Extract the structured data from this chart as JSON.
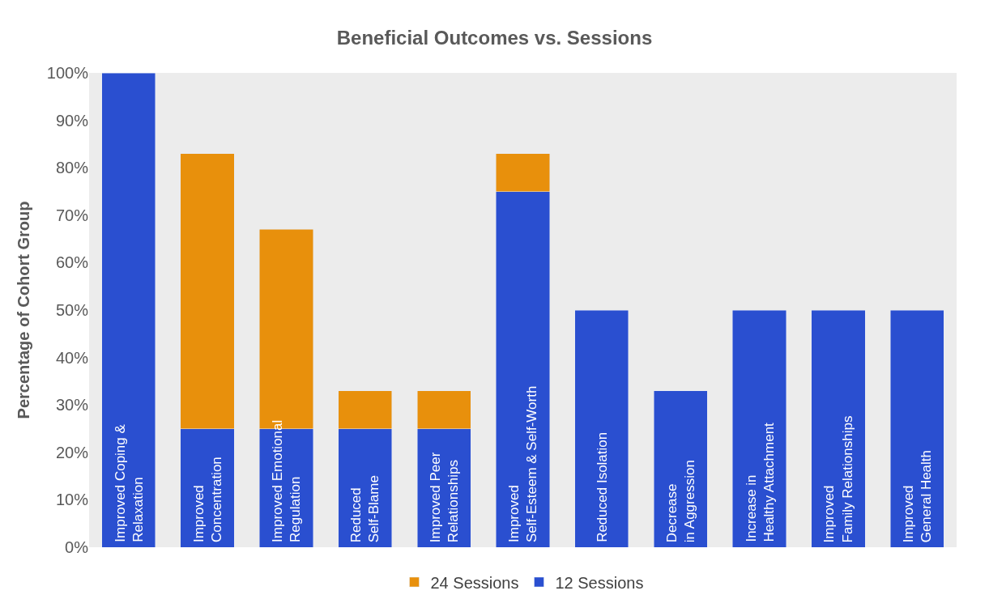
{
  "chart_data": {
    "type": "bar",
    "title": "Beneficial Outcomes vs. Sessions",
    "ylabel": "Percentage of Cohort Group",
    "categories": [
      "Improved Coping &\nRelaxation",
      "Improved\nConcentration",
      "Improved Emotional\nRegulation",
      "Reduced\nSelf-Blame",
      "Improved Peer\nRelationships",
      "Improved\nSelf-Esteem & Self-Worth",
      "Reduced Isolation",
      "Decrease\nin Aggression",
      "Increase in\nHealthy Attachment",
      "Improved\nFamily Relationships",
      "Improved\nGeneral Health"
    ],
    "series": [
      {
        "name": "12 Sessions",
        "color": "#2a4fd0",
        "values": [
          100,
          25,
          25,
          25,
          25,
          75,
          50,
          33,
          50,
          50,
          50
        ]
      },
      {
        "name": "24 Sessions",
        "color": "#e8900c",
        "values": [
          null,
          58,
          42,
          8,
          8,
          8,
          null,
          null,
          null,
          null,
          null
        ]
      }
    ],
    "stacked": true,
    "ylim": [
      0,
      100
    ],
    "yticks": [
      {
        "value": 0,
        "label": "0%"
      },
      {
        "value": 10,
        "label": "10%"
      },
      {
        "value": 20,
        "label": "20%"
      },
      {
        "value": 30,
        "label": "30%"
      },
      {
        "value": 40,
        "label": "40%"
      },
      {
        "value": 50,
        "label": "50%"
      },
      {
        "value": 60,
        "label": "60%"
      },
      {
        "value": 70,
        "label": "70%"
      },
      {
        "value": 80,
        "label": "80%"
      },
      {
        "value": 90,
        "label": "90%"
      },
      {
        "value": 100,
        "label": "100%"
      }
    ],
    "grid": false,
    "legend": "bottom",
    "tick_labels": "y"
  }
}
